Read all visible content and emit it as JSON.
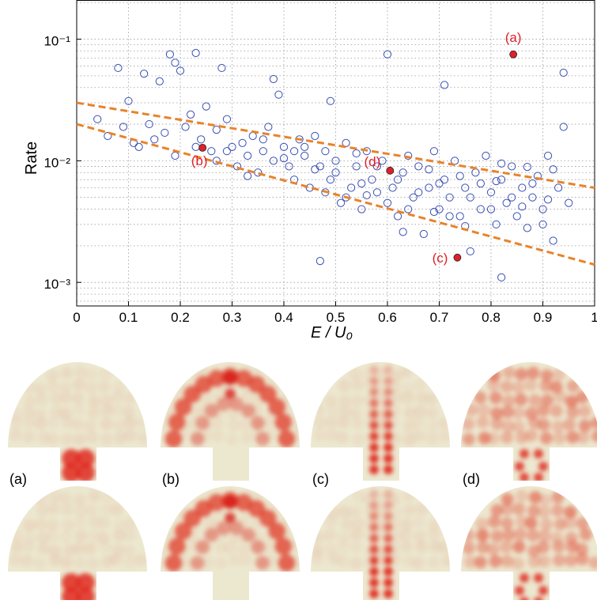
{
  "chart_data": {
    "type": "scatter",
    "ylog": true,
    "grid": true,
    "xlabel": "E / U₀",
    "ylabel": "Rate",
    "xlim": [
      0,
      1
    ],
    "ylim": [
      0.00064,
      0.21
    ],
    "xticks": [
      0,
      0.1,
      0.2,
      0.3,
      0.4,
      0.5,
      0.6,
      0.7,
      0.8,
      0.9,
      1
    ],
    "yticks": [
      {
        "value": 0.1,
        "label": "10⁻¹"
      },
      {
        "value": 0.01,
        "label": "10⁻²"
      },
      {
        "value": 0.001,
        "label": "10⁻³"
      }
    ],
    "yminorticks": [
      0.0007,
      0.0008,
      0.0009,
      0.002,
      0.003,
      0.004,
      0.005,
      0.006,
      0.007,
      0.008,
      0.009,
      0.02,
      0.03,
      0.04,
      0.05,
      0.06,
      0.07,
      0.08,
      0.09,
      0.2
    ],
    "series": [
      {
        "kind": "open-marker",
        "color": "#3a4fb5",
        "x": [
          0.04,
          0.06,
          0.08,
          0.09,
          0.1,
          0.11,
          0.12,
          0.13,
          0.14,
          0.15,
          0.16,
          0.17,
          0.18,
          0.19,
          0.19,
          0.2,
          0.21,
          0.22,
          0.23,
          0.24,
          0.25,
          0.26,
          0.27,
          0.28,
          0.29,
          0.3,
          0.31,
          0.32,
          0.33,
          0.34,
          0.35,
          0.36,
          0.37,
          0.38,
          0.38,
          0.39,
          0.4,
          0.41,
          0.42,
          0.43,
          0.44,
          0.45,
          0.46,
          0.47,
          0.47,
          0.48,
          0.49,
          0.49,
          0.5,
          0.51,
          0.52,
          0.53,
          0.54,
          0.55,
          0.56,
          0.57,
          0.58,
          0.59,
          0.6,
          0.61,
          0.62,
          0.63,
          0.64,
          0.65,
          0.66,
          0.67,
          0.68,
          0.69,
          0.7,
          0.71,
          0.71,
          0.72,
          0.73,
          0.74,
          0.75,
          0.76,
          0.77,
          0.78,
          0.79,
          0.8,
          0.81,
          0.82,
          0.82,
          0.83,
          0.84,
          0.85,
          0.86,
          0.87,
          0.88,
          0.89,
          0.9,
          0.91,
          0.92,
          0.93,
          0.94,
          0.94,
          0.95,
          0.44,
          0.5,
          0.52,
          0.55,
          0.58,
          0.6,
          0.62,
          0.64,
          0.66,
          0.68,
          0.7,
          0.72,
          0.74,
          0.76,
          0.78,
          0.8,
          0.82,
          0.84,
          0.86,
          0.88,
          0.9,
          0.92,
          0.36,
          0.4,
          0.42,
          0.46,
          0.48,
          0.54,
          0.56,
          0.63,
          0.69,
          0.75,
          0.81,
          0.87,
          0.91,
          0.33,
          0.29,
          0.27,
          0.23
        ],
        "values": [
          0.022,
          0.016,
          0.058,
          0.019,
          0.031,
          0.014,
          0.013,
          0.052,
          0.02,
          0.015,
          0.045,
          0.017,
          0.075,
          0.011,
          0.064,
          0.055,
          0.019,
          0.024,
          0.077,
          0.015,
          0.028,
          0.012,
          0.018,
          0.058,
          0.022,
          0.013,
          0.009,
          0.014,
          0.011,
          0.016,
          0.008,
          0.012,
          0.019,
          0.047,
          0.01,
          0.035,
          0.013,
          0.009,
          0.007,
          0.015,
          0.011,
          0.006,
          0.016,
          0.0015,
          0.009,
          0.012,
          0.031,
          0.007,
          0.01,
          0.0045,
          0.014,
          0.006,
          0.009,
          0.004,
          0.012,
          0.007,
          0.0055,
          0.01,
          0.075,
          0.006,
          0.0035,
          0.008,
          0.011,
          0.005,
          0.009,
          0.0025,
          0.006,
          0.012,
          0.004,
          0.042,
          0.007,
          0.005,
          0.01,
          0.0035,
          0.006,
          0.0018,
          0.008,
          0.004,
          0.011,
          0.0055,
          0.003,
          0.0011,
          0.007,
          0.0045,
          0.009,
          0.0035,
          0.006,
          0.0028,
          0.005,
          0.0075,
          0.004,
          0.011,
          0.0022,
          0.006,
          0.053,
          0.019,
          0.0045,
          0.013,
          0.008,
          0.005,
          0.0065,
          0.009,
          0.0045,
          0.007,
          0.004,
          0.0055,
          0.0085,
          0.0065,
          0.0035,
          0.0075,
          0.005,
          0.0065,
          0.004,
          0.0095,
          0.005,
          0.0042,
          0.0065,
          0.003,
          0.0085,
          0.015,
          0.0105,
          0.012,
          0.0085,
          0.0055,
          0.0115,
          0.0052,
          0.0026,
          0.0038,
          0.0029,
          0.0068,
          0.0089,
          0.0048,
          0.0075,
          0.012,
          0.01,
          0.013
        ]
      },
      {
        "kind": "filled-marker",
        "color": "#e0202a",
        "x": [
          0.843,
          0.243,
          0.735,
          0.605
        ],
        "values": [
          0.075,
          0.0128,
          0.0016,
          0.0083
        ]
      },
      {
        "kind": "dashed-line",
        "color": "#e8832a",
        "x": [
          0,
          1
        ],
        "values": [
          0.03,
          0.006
        ]
      },
      {
        "kind": "dashed-line",
        "color": "#e8832a",
        "x": [
          0,
          1
        ],
        "values": [
          0.02,
          0.0014
        ]
      }
    ],
    "annotations": [
      "(a)",
      "(b)",
      "(c)",
      "(d)"
    ]
  },
  "panels": {
    "labels": [
      "(a)",
      "(b)",
      "(c)",
      "(d)"
    ]
  }
}
